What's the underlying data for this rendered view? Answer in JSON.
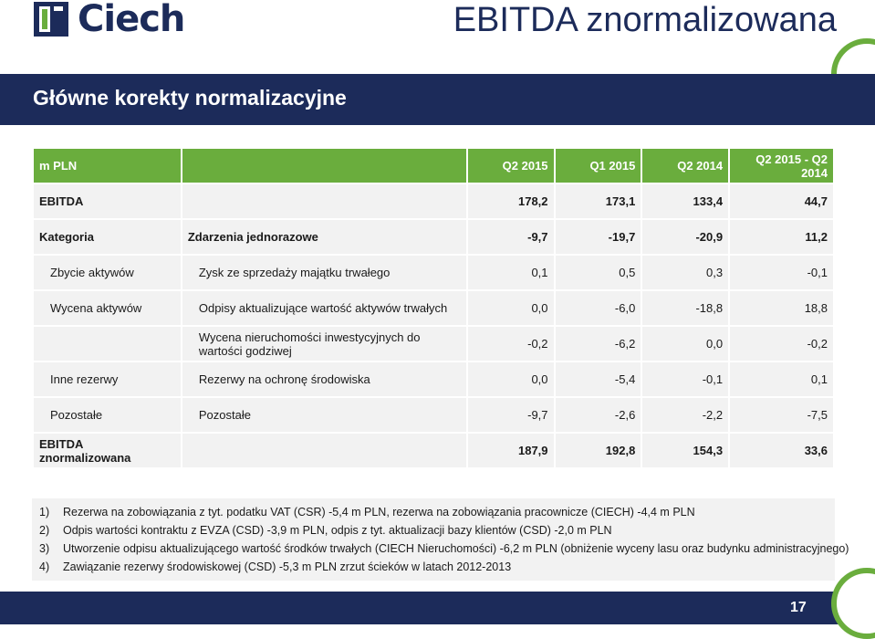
{
  "brand": {
    "name": "Ciech",
    "logo_icon": "ciech-logo-icon",
    "colors": {
      "navy": "#1c2b5a",
      "green": "#6aad3d"
    }
  },
  "title": "EBITDA znormalizowana",
  "section_title": "Główne korekty normalizacyjne",
  "table": {
    "header": [
      "m PLN",
      "",
      "Q2 2015",
      "Q1 2015",
      "Q2 2014",
      "Q2 2015 - Q2 2014"
    ],
    "rows": [
      [
        "EBITDA",
        "",
        "178,2",
        "173,1",
        "133,4",
        "44,7"
      ],
      [
        "Kategoria",
        "Zdarzenia jednorazowe",
        "-9,7",
        "-19,7",
        "-20,9",
        "11,2"
      ],
      [
        "Zbycie aktywów",
        "Zysk ze sprzedaży majątku trwałego",
        "0,1",
        "0,5",
        "0,3",
        "-0,1"
      ],
      [
        "Wycena aktywów",
        "Odpisy aktualizujące wartość aktywów trwałych",
        "0,0",
        "-6,0",
        "-18,8",
        "18,8"
      ],
      [
        "",
        "Wycena nieruchomości inwestycyjnych do wartości godziwej",
        "-0,2",
        "-6,2",
        "0,0",
        "-0,2"
      ],
      [
        "Inne rezerwy",
        "Rezerwy na ochronę środowiska",
        "0,0",
        "-5,4",
        "-0,1",
        "0,1"
      ],
      [
        "Pozostałe",
        "Pozostałe",
        "-9,7",
        "-2,6",
        "-2,2",
        "-7,5"
      ],
      [
        "EBITDA znormalizowana",
        "",
        "187,9",
        "192,8",
        "154,3",
        "33,6"
      ]
    ]
  },
  "notes": [
    {
      "num": "1)",
      "text": "Rezerwa na zobowiązania z tyt. podatku VAT (CSR) -5,4 m PLN, rezerwa na zobowiązania pracownicze (CIECH) -4,4 m PLN"
    },
    {
      "num": "2)",
      "text": "Odpis wartości kontraktu z EVZA (CSD) -3,9 m PLN, odpis z tyt. aktualizacji bazy klientów (CSD) -2,0 m PLN"
    },
    {
      "num": "3)",
      "text": "Utworzenie odpisu aktualizującego wartość środków trwałych (CIECH Nieruchomości) -6,2 m PLN (obniżenie wyceny lasu oraz budynku administracyjnego)"
    },
    {
      "num": "4)",
      "text": "Zawiązanie rezerwy środowiskowej (CSD) -5,3 m PLN zrzut ścieków w latach 2012-2013"
    }
  ],
  "page_number": "17"
}
